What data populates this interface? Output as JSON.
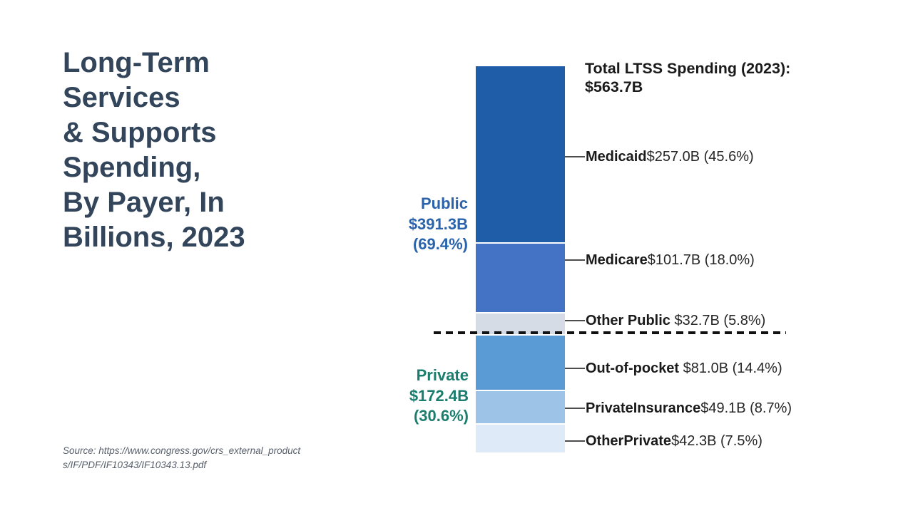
{
  "slide": {
    "title": "Long-Term\nServices\n& Supports\nSpending,\nBy Payer, In\nBillions, 2023",
    "title_color": "#33455A",
    "source": "Source: https://www.congress.gov/crs_external_product\ns/IF/PDF/IF10343/IF10343.13.pdf"
  },
  "chart": {
    "total_label": "Total LTSS Spending (2023):\n$563.7B",
    "group_labels": {
      "public": {
        "text": "Public\n$391.3B\n(69.4%)",
        "color": "#2A63AC"
      },
      "private": {
        "text": "Private\n$172.4B\n(30.6%)",
        "color": "#1A7D6E"
      }
    },
    "segments": [
      {
        "name": "Medicaid",
        "name_label": "Medicaid",
        "value_label": "$257.0B (45.6%)",
        "color": "#1F5DA9"
      },
      {
        "name": "Medicare",
        "name_label": "Medicare",
        "value_label": "$101.7B (18.0%)",
        "color": "#4472C4"
      },
      {
        "name": "Other Public",
        "name_label": "Other Public",
        "value_label": " $32.7B (5.8%)",
        "color": "#D6DCE5"
      },
      {
        "name": "Out-of-pocket",
        "name_label": "Out-of-pocket",
        "value_label": " $81.0B (14.4%)",
        "color": "#5B9BD5"
      },
      {
        "name": "Private Insurance",
        "name_label": "PrivateInsurance",
        "value_label": "$49.1B (8.7%)",
        "color": "#9DC3E6"
      },
      {
        "name": "Other Private",
        "name_label": "OtherPrivate",
        "value_label": "$42.3B (7.5%)",
        "color": "#DEEAF7"
      }
    ]
  },
  "chart_data": {
    "type": "bar",
    "subtype": "single-column-stacked",
    "title": "Total LTSS Spending (2023): $563.7B",
    "unit": "billions USD",
    "total": 563.7,
    "categories": [
      "Medicaid",
      "Medicare",
      "Other Public",
      "Out-of-pocket",
      "Private Insurance",
      "Other Private"
    ],
    "values": [
      257.0,
      101.7,
      32.7,
      81.0,
      49.1,
      42.3
    ],
    "percentages": [
      45.6,
      18.0,
      5.8,
      14.4,
      8.7,
      7.5
    ],
    "colors": [
      "#1F5DA9",
      "#4472C4",
      "#D6DCE5",
      "#5B9BD5",
      "#9DC3E6",
      "#DEEAF7"
    ],
    "groups": [
      {
        "name": "Public",
        "total": 391.3,
        "pct": 69.4,
        "color": "#2A63AC",
        "members": [
          "Medicaid",
          "Medicare",
          "Other Public"
        ]
      },
      {
        "name": "Private",
        "total": 172.4,
        "pct": 30.6,
        "color": "#1A7D6E",
        "members": [
          "Out-of-pocket",
          "Private Insurance",
          "Other Private"
        ]
      }
    ],
    "annotations": [
      "Dashed line separates Public from Private segments"
    ],
    "legend_position": "none",
    "grid": false
  }
}
